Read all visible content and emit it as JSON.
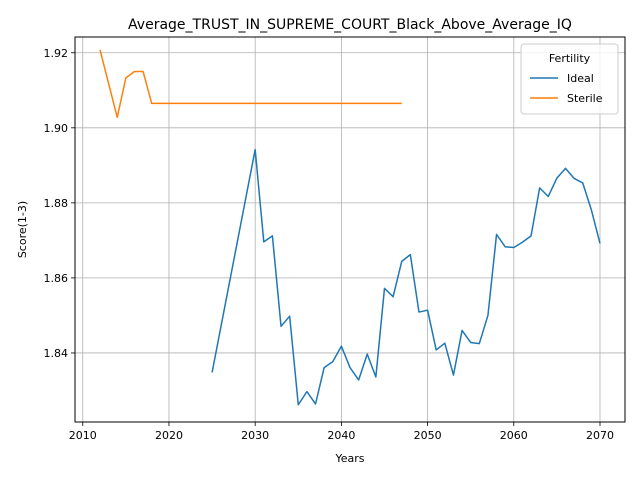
{
  "chart_data": {
    "type": "line",
    "title": "Average_TRUST_IN_SUPREME_COURT_Black_Above_Average_IQ",
    "xlabel": "Years",
    "ylabel": "Score(1-3)",
    "xlim": [
      2009.1,
      2072.9
    ],
    "ylim": [
      1.8216,
      1.9242
    ],
    "xticks": [
      2010,
      2020,
      2030,
      2040,
      2050,
      2060,
      2070
    ],
    "xtick_labels": [
      "2010",
      "2020",
      "2030",
      "2040",
      "2050",
      "2060",
      "2070"
    ],
    "yticks": [
      1.84,
      1.86,
      1.88,
      1.9,
      1.92
    ],
    "ytick_labels": [
      "1.84",
      "1.86",
      "1.88",
      "1.90",
      "1.92"
    ],
    "grid": true,
    "legend": {
      "title": "Fertility",
      "placement": "top-right"
    },
    "series": [
      {
        "name": "Ideal",
        "color": "#1f77b4",
        "x": [
          2025,
          2030,
          2031,
          2032,
          2033,
          2034,
          2035,
          2036,
          2037,
          2038,
          2039,
          2040,
          2041,
          2042,
          2043,
          2044,
          2045,
          2046,
          2047,
          2048,
          2049,
          2050,
          2051,
          2052,
          2053,
          2054,
          2055,
          2056,
          2057,
          2058,
          2059,
          2060,
          2061,
          2062,
          2063,
          2064,
          2065,
          2066,
          2067,
          2068,
          2069,
          2070
        ],
        "y": [
          1.8348,
          1.8942,
          1.8696,
          1.8712,
          1.8471,
          1.8498,
          1.8262,
          1.8297,
          1.8264,
          1.8361,
          1.8377,
          1.8418,
          1.8361,
          1.8328,
          1.8397,
          1.8336,
          1.8572,
          1.855,
          1.8644,
          1.8662,
          1.8509,
          1.8514,
          1.8408,
          1.8426,
          1.8341,
          1.846,
          1.8428,
          1.8425,
          1.85,
          1.8716,
          1.8683,
          1.8681,
          1.8695,
          1.8712,
          1.884,
          1.8817,
          1.8866,
          1.8892,
          1.8865,
          1.8853,
          1.8781,
          1.8692
        ]
      },
      {
        "name": "Sterile",
        "color": "#ff7f0e",
        "x": [
          2012,
          2013,
          2014,
          2015,
          2016,
          2017,
          2018,
          2019,
          2020,
          2021,
          2022,
          2023,
          2024,
          2025,
          2026,
          2027,
          2028,
          2029,
          2030,
          2031,
          2032,
          2033,
          2034,
          2035,
          2036,
          2037,
          2038,
          2039,
          2040,
          2041,
          2042,
          2043,
          2044,
          2045,
          2046,
          2047
        ],
        "y": [
          1.9208,
          1.9118,
          1.9028,
          1.9133,
          1.915,
          1.915,
          1.9065,
          1.9065,
          1.9065,
          1.9065,
          1.9065,
          1.9065,
          1.9065,
          1.9065,
          1.9065,
          1.9065,
          1.9065,
          1.9065,
          1.9065,
          1.9065,
          1.9065,
          1.9065,
          1.9065,
          1.9065,
          1.9065,
          1.9065,
          1.9065,
          1.9065,
          1.9065,
          1.9065,
          1.9065,
          1.9065,
          1.9065,
          1.9065,
          1.9065,
          1.9065
        ]
      }
    ]
  }
}
